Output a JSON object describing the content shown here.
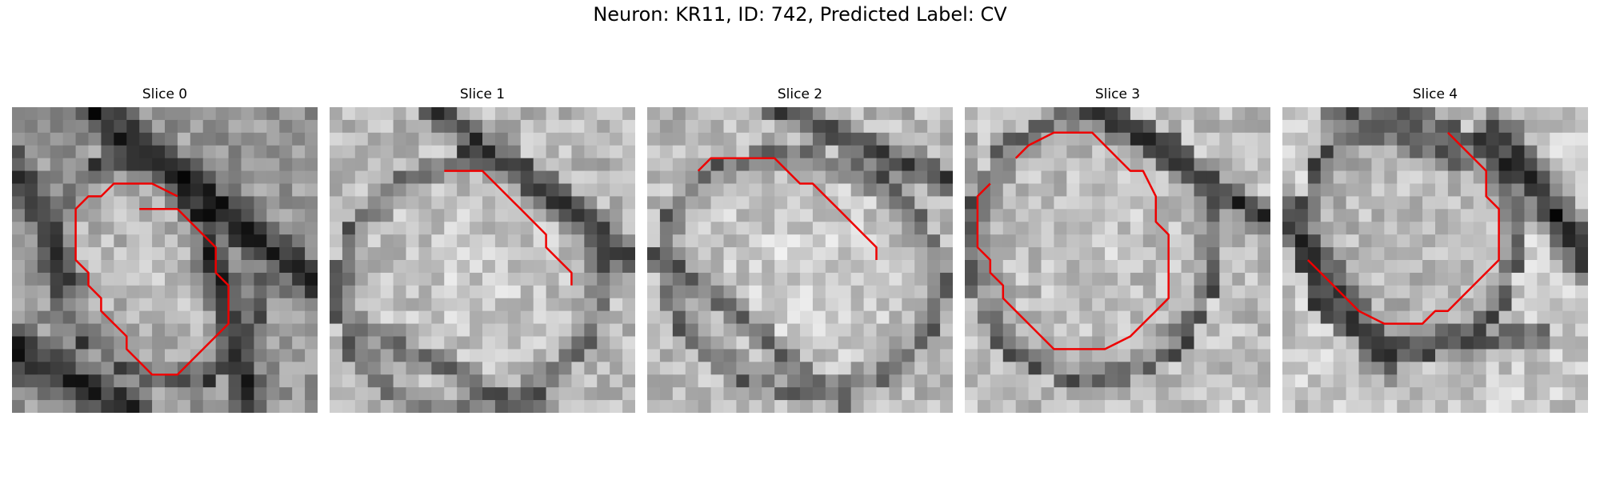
{
  "figure": {
    "title": "Neuron: KR11, ID: 742, Predicted Label: CV",
    "contour_color": "#ee0000"
  },
  "panels": [
    {
      "title": "Slice 0",
      "background_description": "Grayscale microscopy patch, light gray cell body with dark surrounding membrane bands",
      "contour": [
        [
          10,
          8
        ],
        [
          13,
          8
        ],
        [
          14,
          9
        ],
        [
          15,
          10
        ],
        [
          16,
          11
        ],
        [
          16,
          13
        ],
        [
          17,
          14
        ],
        [
          17,
          17
        ],
        [
          15,
          19
        ],
        [
          13,
          21
        ],
        [
          11,
          21
        ],
        [
          10,
          20
        ],
        [
          9,
          19
        ],
        [
          9,
          18
        ],
        [
          8,
          17
        ],
        [
          7,
          16
        ],
        [
          7,
          15
        ],
        [
          6,
          14
        ],
        [
          6,
          13
        ],
        [
          5,
          12
        ],
        [
          5,
          11
        ],
        [
          5,
          10
        ],
        [
          5,
          8
        ],
        [
          6,
          7
        ],
        [
          7,
          7
        ],
        [
          8,
          6
        ],
        [
          11,
          6
        ],
        [
          13,
          7
        ]
      ]
    },
    {
      "title": "Slice 1",
      "background_description": "Grayscale microscopy patch, large light gray cell body with dark membrane on upper right",
      "contour": [
        [
          9,
          5
        ],
        [
          12,
          5
        ],
        [
          13,
          6
        ],
        [
          14,
          7
        ],
        [
          15,
          8
        ],
        [
          16,
          9
        ],
        [
          17,
          10
        ],
        [
          17,
          11
        ],
        [
          18,
          12
        ],
        [
          19,
          13
        ],
        [
          19,
          14
        ]
      ]
    },
    {
      "title": "Slice 2",
      "background_description": "Grayscale microscopy patch, light gray cell body with dark diagonal band in upper right",
      "contour": [
        [
          4,
          5
        ],
        [
          5,
          4
        ],
        [
          6,
          4
        ],
        [
          7,
          4
        ],
        [
          10,
          4
        ],
        [
          11,
          5
        ],
        [
          12,
          6
        ],
        [
          13,
          6
        ],
        [
          14,
          7
        ],
        [
          15,
          8
        ],
        [
          16,
          9
        ],
        [
          17,
          10
        ],
        [
          18,
          11
        ],
        [
          18,
          12
        ]
      ]
    },
    {
      "title": "Slice 3",
      "background_description": "Grayscale microscopy patch, light gray cell body with dark membrane in upper right",
      "contour": [
        [
          4,
          4
        ],
        [
          5,
          3
        ],
        [
          7,
          2
        ],
        [
          10,
          2
        ],
        [
          11,
          3
        ],
        [
          12,
          4
        ],
        [
          13,
          5
        ],
        [
          14,
          5
        ],
        [
          15,
          7
        ],
        [
          15,
          9
        ],
        [
          16,
          10
        ],
        [
          16,
          15
        ],
        [
          15,
          16
        ],
        [
          14,
          17
        ],
        [
          13,
          18
        ],
        [
          11,
          19
        ],
        [
          7,
          19
        ],
        [
          6,
          18
        ],
        [
          5,
          17
        ],
        [
          4,
          16
        ],
        [
          3,
          15
        ],
        [
          3,
          14
        ],
        [
          2,
          13
        ],
        [
          2,
          12
        ],
        [
          1,
          11
        ],
        [
          1,
          9
        ],
        [
          1,
          7
        ],
        [
          2,
          6
        ]
      ]
    },
    {
      "title": "Slice 4",
      "background_description": "Grayscale microscopy patch, mid gray cell body surrounded by dark rim",
      "contour": [
        [
          13,
          2
        ],
        [
          14,
          3
        ],
        [
          15,
          4
        ],
        [
          16,
          5
        ],
        [
          16,
          7
        ],
        [
          17,
          8
        ],
        [
          17,
          9
        ],
        [
          17,
          12
        ],
        [
          16,
          13
        ],
        [
          15,
          14
        ],
        [
          14,
          15
        ],
        [
          13,
          16
        ],
        [
          12,
          16
        ],
        [
          11,
          17
        ],
        [
          8,
          17
        ],
        [
          6,
          16
        ],
        [
          5,
          15
        ],
        [
          4,
          14
        ],
        [
          3,
          13
        ],
        [
          2,
          12
        ]
      ]
    }
  ]
}
